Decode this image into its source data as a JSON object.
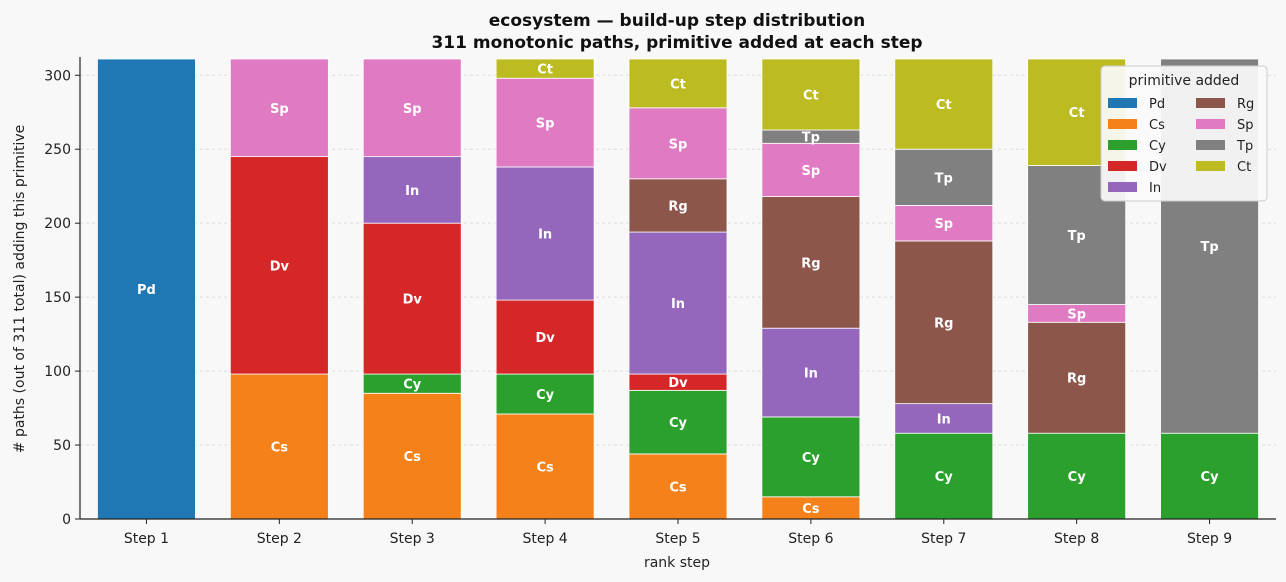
{
  "chart_data": {
    "type": "bar",
    "stacked": true,
    "title": "ecosystem — build-up step distribution",
    "subtitle": "311 monotonic paths, primitive added at each step",
    "xlabel": "rank step",
    "ylabel": "# paths (out of 311 total) adding this primitive",
    "ylim": [
      0,
      311
    ],
    "yticks": [
      0,
      50,
      100,
      150,
      200,
      250,
      300
    ],
    "grid": true,
    "legend_title": "primitive added",
    "legend_position": "top-right",
    "categories": [
      "Step 1",
      "Step 2",
      "Step 3",
      "Step 4",
      "Step 5",
      "Step 6",
      "Step 7",
      "Step 8",
      "Step 9"
    ],
    "series": [
      {
        "name": "Pd",
        "color": "#1f77b4",
        "values": [
          311,
          0,
          0,
          0,
          0,
          0,
          0,
          0,
          0
        ]
      },
      {
        "name": "Cs",
        "color": "#f5811a",
        "values": [
          0,
          98,
          85,
          71,
          44,
          15,
          0,
          0,
          0
        ]
      },
      {
        "name": "Cy",
        "color": "#2ca02c",
        "values": [
          0,
          0,
          13,
          27,
          43,
          54,
          58,
          58,
          58
        ]
      },
      {
        "name": "Dv",
        "color": "#d62728",
        "values": [
          0,
          147,
          102,
          50,
          11,
          0,
          0,
          0,
          0
        ]
      },
      {
        "name": "In",
        "color": "#9467bd",
        "values": [
          0,
          0,
          45,
          90,
          96,
          60,
          20,
          0,
          0
        ]
      },
      {
        "name": "Rg",
        "color": "#8c564b",
        "values": [
          0,
          0,
          0,
          0,
          36,
          89,
          110,
          75,
          0
        ]
      },
      {
        "name": "Sp",
        "color": "#e07ac2",
        "values": [
          0,
          66,
          66,
          60,
          48,
          36,
          24,
          12,
          0
        ]
      },
      {
        "name": "Tp",
        "color": "#808080",
        "values": [
          0,
          0,
          0,
          0,
          0,
          9,
          38,
          94,
          253
        ]
      },
      {
        "name": "Ct",
        "color": "#bcbc22",
        "values": [
          0,
          0,
          0,
          13,
          33,
          48,
          61,
          72,
          0
        ]
      }
    ]
  }
}
